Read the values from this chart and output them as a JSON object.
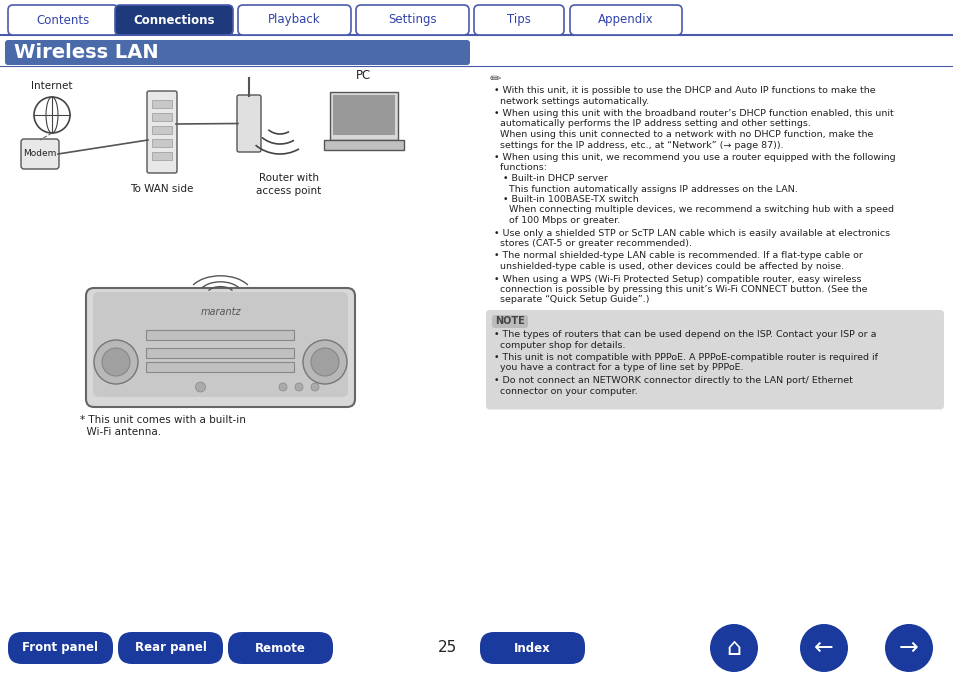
{
  "bg_color": "#ffffff",
  "tab_line_color": "#4a5aab",
  "tab_bg_inactive": "#ffffff",
  "tab_bg_active": "#1e3a7a",
  "tab_text_inactive_color": "#3344aa",
  "tab_text_active_color": "#ffffff",
  "tabs": [
    "Contents",
    "Connections",
    "Playback",
    "Settings",
    "Tips",
    "Appendix"
  ],
  "active_tab": 1,
  "title_bg": "#4a6aaa",
  "title_text": "Wireless LAN",
  "title_text_color": "#ffffff",
  "note_bg": "#cccccc",
  "note_text_color": "#333333",
  "bottom_btn_color": "#1a3a9e",
  "bottom_btn_text_color": "#ffffff",
  "bottom_btns": [
    "Front panel",
    "Rear panel",
    "Remote",
    "Index"
  ],
  "page_number": "25",
  "body_text_color": "#222222",
  "body_text_size": 6.8,
  "note_label": "NOTE",
  "main_bullets": [
    "• With this unit, it is possible to use the DHCP and Auto IP functions to make the\n  network settings automatically.",
    "• When using this unit with the broadband router’s DHCP function enabled, this unit\n  automatically performs the IP address setting and other settings.\n  When using this unit connected to a network with no DHCP function, make the\n  settings for the IP address, etc., at “Network” (→ page 87)).",
    "• When using this unit, we recommend you use a router equipped with the following\n  functions:\n   • Built-in DHCP server\n     This function automatically assigns IP addresses on the LAN.\n   • Built-in 100BASE-TX switch\n     When connecting multiple devices, we recommend a switching hub with a speed\n     of 100 Mbps or greater.",
    "• Use only a shielded STP or ScTP LAN cable which is easily available at electronics\n  stores (CAT-5 or greater recommended).",
    "• The normal shielded-type LAN cable is recommended. If a flat-type cable or\n  unshielded-type cable is used, other devices could be affected by noise.",
    "• When using a WPS (Wi-Fi Protected Setup) compatible router, easy wireless\n  connection is possible by pressing this unit’s Wi-Fi CONNECT button. (See the\n  separate “Quick Setup Guide”.)"
  ],
  "note_bullets": [
    "• The types of routers that can be used depend on the ISP. Contact your ISP or a\n  computer shop for details.",
    "• This unit is not compatible with PPPoE. A PPPoE-compatible router is required if\n  you have a contract for a type of line set by PPPoE.",
    "• Do not connect an NETWORK connector directly to the LAN port/ Ethernet\n  connector on your computer."
  ],
  "footnote_line1": "* This unit comes with a built-in",
  "footnote_line2": "  Wi-Fi antenna."
}
